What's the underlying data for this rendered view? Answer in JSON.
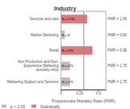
{
  "chart_data": {
    "type": "bar",
    "orientation": "horizontal",
    "title": "Industry",
    "xlabel": "Proportionate Mortality Ratio (PMR)",
    "categories": [
      "Services and care",
      "Market Marketing",
      "Retail",
      "Non-Production and Non-\nExperience Marketing\nspecialty shop",
      "Marketing Support and Services"
    ],
    "series": [
      {
        "name": "p < 0.05",
        "color": "#c4b8b8",
        "values": [
          null,
          0.05,
          null,
          0.12,
          0.12
        ]
      },
      {
        "name": "Statistically",
        "color": "#e07878",
        "values": [
          0.35,
          null,
          0.42,
          null,
          null
        ]
      }
    ],
    "n_labels": [
      "N = 1716",
      "N = 8",
      "N = 476",
      "N = 175",
      "N = 175"
    ],
    "pmr_labels": [
      "PMR = 1.56",
      "PMR = 0.80",
      "PMR = 0.98",
      "PMR = 1.75",
      "PMR = 1.75"
    ],
    "reference_line": {
      "value": 0.3,
      "color": "#888888"
    },
    "xlim": [
      0.0,
      0.6
    ],
    "xticks": [
      0,
      0.25,
      0.5
    ],
    "grid": false,
    "legend": "lower left"
  }
}
